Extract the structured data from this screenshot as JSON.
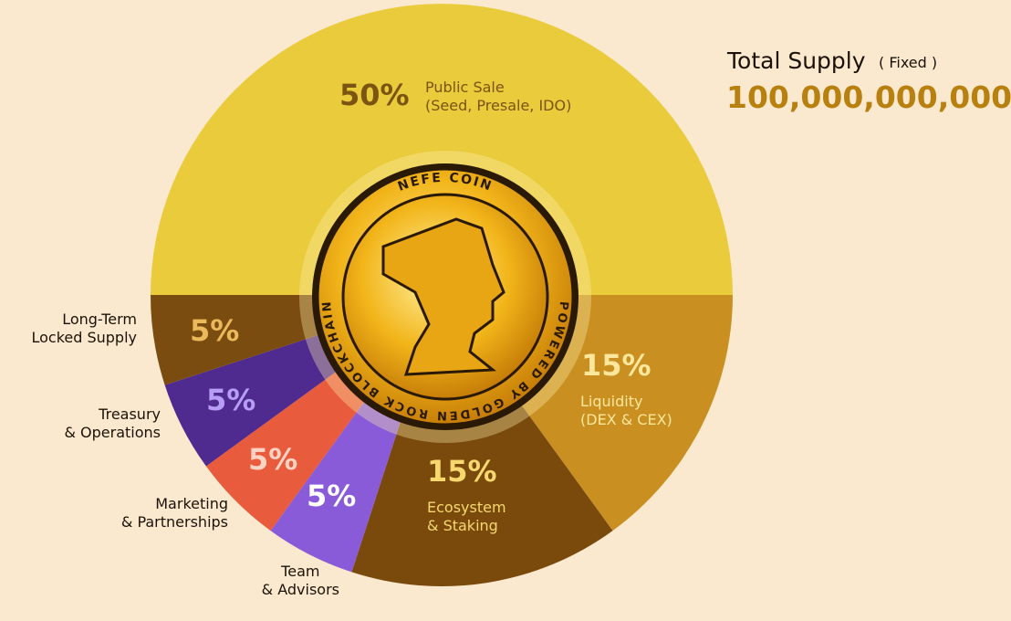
{
  "chart_data": {
    "type": "pie",
    "title": "Total Supply",
    "subtitle": "( Fixed )",
    "total_supply": "100,000,000,000",
    "categories": [
      "Public Sale\n(Seed, Presale, IDO)",
      "Liquidity\n(DEX & CEX)",
      "Ecosystem\n& Staking",
      "Team\n& Advisors",
      "Marketing\n& Partnerships",
      "Treasury\n& Operations",
      "Long-Term\nLocked Supply"
    ],
    "values": [
      50,
      15,
      15,
      5,
      5,
      5,
      5
    ],
    "value_labels": [
      "50%",
      "15%",
      "15%",
      "5%",
      "5%",
      "5%",
      "5%"
    ],
    "colors": [
      "#eacb3c",
      "#c98f20",
      "#7a4a0c",
      "#8a5bd9",
      "#e85b3c",
      "#4f2b8f",
      "#7a4c10"
    ],
    "coin": {
      "top": "NEFE COIN",
      "ring": "POWERED BY GOLDEN ROCK BLOCKCHAIN"
    }
  }
}
